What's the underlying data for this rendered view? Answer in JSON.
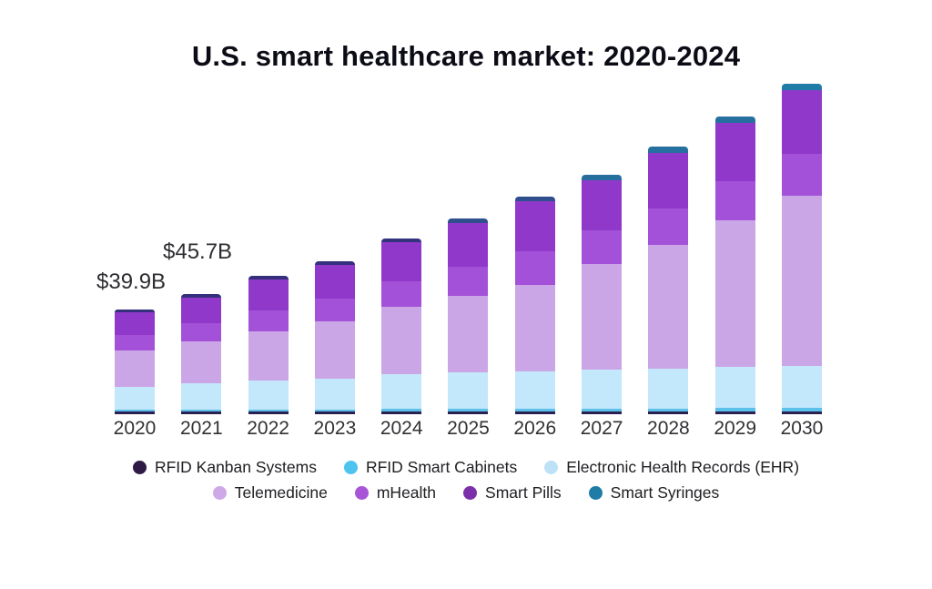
{
  "title": "U.S. smart healthcare market: 2020-2024",
  "annotations": [
    {
      "year": "2020",
      "text": "$39.9B"
    },
    {
      "year": "2021",
      "text": "$45.7B"
    }
  ],
  "chart_data": {
    "type": "bar",
    "stacked": true,
    "unit": "USD billions",
    "categories": [
      "2020",
      "2021",
      "2022",
      "2023",
      "2024",
      "2025",
      "2026",
      "2027",
      "2028",
      "2029",
      "2030"
    ],
    "series": [
      {
        "name": "RFID Kanban Systems",
        "color": "#2a2152",
        "values": [
          1.0,
          1.0,
          1.0,
          1.0,
          1.0,
          1.0,
          1.0,
          1.0,
          1.0,
          1.0,
          1.0
        ]
      },
      {
        "name": "RFID Smart Cabinets",
        "color": "#5bc0ea",
        "values": [
          0.8,
          0.8,
          0.9,
          0.9,
          1.0,
          1.0,
          1.1,
          1.1,
          1.2,
          1.3,
          1.4
        ]
      },
      {
        "name": "Electronic Health Records (EHR)",
        "color": "#c3e7fb",
        "values": [
          8.8,
          10.2,
          10.9,
          11.6,
          13.3,
          14.0,
          14.4,
          15.1,
          15.4,
          15.8,
          16.1
        ]
      },
      {
        "name": "Telemedicine",
        "color": "#cba6e6",
        "values": [
          14.0,
          16.1,
          18.9,
          22.1,
          25.9,
          29.4,
          33.3,
          40.6,
          47.3,
          56.4,
          65.5
        ]
      },
      {
        "name": "mHealth",
        "color": "#a351d8",
        "values": [
          5.8,
          6.7,
          8.0,
          8.7,
          10.0,
          11.2,
          12.8,
          12.9,
          14.2,
          15.0,
          16.2
        ]
      },
      {
        "name": "Smart Pills",
        "color": "#9038ca",
        "values": [
          8.6,
          10.1,
          12.0,
          13.0,
          14.9,
          16.8,
          19.1,
          19.3,
          21.2,
          22.5,
          24.4
        ]
      },
      {
        "name": "Smart Syringes",
        "color": "#1e7ca6",
        "values": [
          1.1,
          1.1,
          1.4,
          1.4,
          1.4,
          1.8,
          1.8,
          2.1,
          2.5,
          2.5,
          2.5
        ]
      }
    ],
    "syringes_cap_colors": [
      "#34307c",
      "#34307c",
      "#34307c",
      "#34307c",
      "#333380",
      "#2e4e8c",
      "#2e4e8c",
      "#266e9e",
      "#25709e",
      "#25709e",
      "#1e7ca6"
    ],
    "totals_labeled": {
      "2020": "$39.9B",
      "2021": "$45.7B"
    },
    "legend_rows": [
      [
        0,
        1,
        2
      ],
      [
        3,
        4,
        5,
        6
      ]
    ],
    "legend_dot_colors": [
      "#2e1a47",
      "#4fc3f0",
      "#bde2f8",
      "#cda9e8",
      "#a855d8",
      "#7b2fa8",
      "#1e7ca6"
    ],
    "xlabel": "",
    "ylabel": "",
    "grid": false,
    "legend_position": "bottom"
  }
}
